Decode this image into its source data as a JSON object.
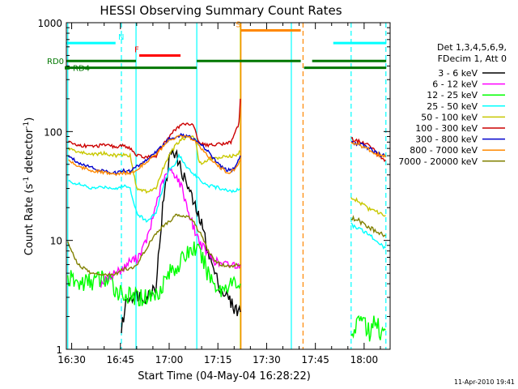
{
  "chart_data": {
    "type": "line",
    "title": "HESSI Observing Summary Count Rates",
    "xlabel": "Start Time (04-May-04 16:28:22)",
    "ylabel_main": "Count Rate (s",
    "ylabel_sup1": "-1",
    "ylabel_mid": " detector",
    "ylabel_sup2": "-1",
    "ylabel_end": ")",
    "footer": "11-Apr-2010 19:41",
    "yscale": "log",
    "xlim": [
      "16:28:22",
      "18:08:00"
    ],
    "ylim": [
      1,
      1000
    ],
    "x_ticks": [
      {
        "t": 990,
        "label": "16:30"
      },
      {
        "t": 1005,
        "label": "16:45"
      },
      {
        "t": 1020,
        "label": "17:00"
      },
      {
        "t": 1035,
        "label": "17:15"
      },
      {
        "t": 1050,
        "label": "17:30"
      },
      {
        "t": 1065,
        "label": "17:45"
      },
      {
        "t": 1080,
        "label": "18:00"
      }
    ],
    "y_ticks": [
      {
        "v": 1,
        "label": "1"
      },
      {
        "v": 10,
        "label": "10"
      },
      {
        "v": 100,
        "label": "100"
      },
      {
        "v": 1000,
        "label": "1000"
      }
    ],
    "legend_title": [
      "Det 1,3,4,5,6,9,",
      "FDecim 1, Att 0"
    ],
    "series": [
      {
        "name": "3 - 6 keV",
        "color": "#000000",
        "points": [
          [
            1004.0,
            null
          ],
          [
            1005.3,
            1.5
          ],
          [
            1007,
            3
          ],
          [
            1010,
            3.2
          ],
          [
            1013,
            3
          ],
          [
            1016,
            4
          ],
          [
            1018,
            20
          ],
          [
            1020,
            55
          ],
          [
            1021,
            70
          ],
          [
            1022,
            62
          ],
          [
            1024,
            42
          ],
          [
            1026,
            30
          ],
          [
            1028,
            20
          ],
          [
            1030,
            14
          ],
          [
            1032,
            8
          ],
          [
            1034,
            5
          ],
          [
            1036,
            3.5
          ],
          [
            1038,
            3
          ],
          [
            1040,
            2.4
          ],
          [
            1041.9,
            2.2
          ]
        ]
      },
      {
        "name": "6 - 12 keV",
        "color": "#ff00ff",
        "points": [
          [
            999,
            4
          ],
          [
            1003,
            5
          ],
          [
            1006,
            5.5
          ],
          [
            1008,
            6.5
          ],
          [
            1010,
            6.8
          ],
          [
            1012,
            8.5
          ],
          [
            1014,
            12
          ],
          [
            1016,
            22
          ],
          [
            1018,
            34
          ],
          [
            1020,
            44
          ],
          [
            1022,
            40
          ],
          [
            1024,
            30
          ],
          [
            1026,
            18
          ],
          [
            1028,
            12
          ],
          [
            1030,
            9
          ],
          [
            1032,
            7.5
          ],
          [
            1034,
            6.5
          ],
          [
            1036,
            6
          ],
          [
            1038,
            6
          ],
          [
            1041.9,
            6
          ]
        ]
      },
      {
        "name": "12 - 25 keV",
        "color": "#00ff00",
        "points": [
          [
            988.8,
            4.5
          ],
          [
            992,
            4
          ],
          [
            996,
            4.2
          ],
          [
            1000,
            4.5
          ],
          [
            1004,
            3.5
          ],
          [
            1008,
            3
          ],
          [
            1012,
            3
          ],
          [
            1016,
            3.2
          ],
          [
            1020,
            5
          ],
          [
            1024,
            6.5
          ],
          [
            1026,
            8
          ],
          [
            1028,
            8.5
          ],
          [
            1030,
            7
          ],
          [
            1032,
            5
          ],
          [
            1034,
            4
          ],
          [
            1036,
            3.5
          ],
          [
            1038,
            4
          ],
          [
            1041.9,
            4
          ]
        ]
      },
      {
        "name": "25 - 50 keV",
        "color": "#00ffff",
        "points": [
          [
            989,
            35
          ],
          [
            992,
            33
          ],
          [
            996,
            30
          ],
          [
            1000,
            31
          ],
          [
            1004,
            30
          ],
          [
            1006,
            32
          ],
          [
            1008,
            30
          ],
          [
            1010,
            18
          ],
          [
            1013,
            15
          ],
          [
            1016,
            18
          ],
          [
            1018,
            30
          ],
          [
            1020,
            45
          ],
          [
            1022,
            50
          ],
          [
            1023,
            60
          ],
          [
            1024,
            55
          ],
          [
            1026,
            45
          ],
          [
            1028,
            40
          ],
          [
            1030,
            35
          ],
          [
            1032,
            32
          ],
          [
            1034,
            31
          ],
          [
            1036,
            30
          ],
          [
            1040,
            28
          ],
          [
            1041.9,
            30
          ]
        ]
      },
      {
        "name": "50 - 100 keV",
        "color": "#c8c800",
        "points": [
          [
            989,
            70
          ],
          [
            992,
            65
          ],
          [
            996,
            62
          ],
          [
            1000,
            63
          ],
          [
            1004,
            60
          ],
          [
            1006,
            62
          ],
          [
            1008,
            60
          ],
          [
            1010,
            30
          ],
          [
            1013,
            28
          ],
          [
            1016,
            30
          ],
          [
            1018,
            45
          ],
          [
            1020,
            60
          ],
          [
            1022,
            75
          ],
          [
            1024,
            85
          ],
          [
            1026,
            90
          ],
          [
            1028,
            88
          ],
          [
            1029,
            55
          ],
          [
            1030,
            50
          ],
          [
            1032,
            55
          ],
          [
            1036,
            58
          ],
          [
            1040,
            60
          ],
          [
            1041.9,
            65
          ]
        ]
      },
      {
        "name": "100 - 300 keV",
        "color": "#cc0000",
        "points": [
          [
            989,
            80
          ],
          [
            992,
            75
          ],
          [
            996,
            73
          ],
          [
            1000,
            75
          ],
          [
            1004,
            72
          ],
          [
            1006,
            75
          ],
          [
            1008,
            70
          ],
          [
            1010,
            60
          ],
          [
            1013,
            58
          ],
          [
            1016,
            60
          ],
          [
            1018,
            75
          ],
          [
            1020,
            90
          ],
          [
            1022,
            105
          ],
          [
            1024,
            115
          ],
          [
            1026,
            120
          ],
          [
            1028,
            108
          ],
          [
            1029,
            80
          ],
          [
            1030,
            78
          ],
          [
            1032,
            75
          ],
          [
            1036,
            77
          ],
          [
            1039,
            80
          ],
          [
            1041.5,
            120
          ],
          [
            1041.9,
            200
          ]
        ]
      },
      {
        "name": "300 - 800 keV",
        "color": "#0000cc",
        "points": [
          [
            989,
            60
          ],
          [
            992,
            52
          ],
          [
            996,
            47
          ],
          [
            1000,
            43
          ],
          [
            1004,
            42
          ],
          [
            1006,
            44
          ],
          [
            1008,
            43
          ],
          [
            1010,
            48
          ],
          [
            1012,
            52
          ],
          [
            1014,
            58
          ],
          [
            1016,
            65
          ],
          [
            1018,
            75
          ],
          [
            1020,
            85
          ],
          [
            1022,
            90
          ],
          [
            1024,
            93
          ],
          [
            1026,
            90
          ],
          [
            1028,
            85
          ],
          [
            1030,
            75
          ],
          [
            1032,
            65
          ],
          [
            1034,
            55
          ],
          [
            1036,
            48
          ],
          [
            1038,
            44
          ],
          [
            1040,
            45
          ],
          [
            1041.9,
            60
          ]
        ]
      },
      {
        "name": "800 - 7000 keV",
        "color": "#ff8800",
        "points": [
          [
            989,
            55
          ],
          [
            992,
            48
          ],
          [
            996,
            44
          ],
          [
            1000,
            42
          ],
          [
            1004,
            40
          ],
          [
            1006,
            42
          ],
          [
            1008,
            41
          ],
          [
            1010,
            45
          ],
          [
            1012,
            50
          ],
          [
            1014,
            56
          ],
          [
            1016,
            62
          ],
          [
            1018,
            72
          ],
          [
            1020,
            82
          ],
          [
            1022,
            88
          ],
          [
            1024,
            90
          ],
          [
            1026,
            88
          ],
          [
            1028,
            82
          ],
          [
            1030,
            70
          ],
          [
            1032,
            60
          ],
          [
            1034,
            52
          ],
          [
            1036,
            46
          ],
          [
            1038,
            42
          ],
          [
            1040,
            44
          ],
          [
            1041.9,
            55
          ]
        ]
      },
      {
        "name": "7000 - 20000 keV",
        "color": "#808000",
        "points": [
          [
            988.8,
            9.5
          ],
          [
            990,
            8
          ],
          [
            992,
            6
          ],
          [
            996,
            5
          ],
          [
            1000,
            4.8
          ],
          [
            1004,
            5
          ],
          [
            1006,
            5.5
          ],
          [
            1008,
            5.5
          ],
          [
            1010,
            6
          ],
          [
            1012,
            7.5
          ],
          [
            1014,
            9.5
          ],
          [
            1016,
            11.5
          ],
          [
            1018,
            13.5
          ],
          [
            1020,
            15
          ],
          [
            1022,
            17
          ],
          [
            1024,
            17
          ],
          [
            1026,
            16.5
          ],
          [
            1028,
            14
          ],
          [
            1030,
            11
          ],
          [
            1032,
            8
          ],
          [
            1034,
            6.5
          ],
          [
            1036,
            6
          ],
          [
            1038,
            5.8
          ],
          [
            1041.9,
            6
          ]
        ]
      }
    ],
    "series_late": [
      {
        "color": "#cc0000",
        "points": [
          [
            1076,
            85
          ],
          [
            1078,
            82
          ],
          [
            1080,
            78
          ],
          [
            1082,
            72
          ],
          [
            1084,
            62
          ],
          [
            1086.6,
            55
          ]
        ]
      },
      {
        "color": "#0000cc",
        "points": [
          [
            1076,
            80
          ],
          [
            1078,
            78
          ],
          [
            1080,
            74
          ],
          [
            1082,
            68
          ],
          [
            1084,
            62
          ],
          [
            1086.6,
            60
          ]
        ]
      },
      {
        "color": "#ff8800",
        "points": [
          [
            1076,
            78
          ],
          [
            1078,
            76
          ],
          [
            1080,
            73
          ],
          [
            1082,
            67
          ],
          [
            1084,
            62
          ],
          [
            1086.6,
            58
          ]
        ]
      },
      {
        "color": "#c8c800",
        "points": [
          [
            1076,
            25
          ],
          [
            1078,
            23
          ],
          [
            1080,
            21
          ],
          [
            1082,
            19
          ],
          [
            1084,
            18
          ],
          [
            1086.6,
            17
          ]
        ]
      },
      {
        "color": "#808000",
        "points": [
          [
            1076,
            16
          ],
          [
            1078,
            15.5
          ],
          [
            1080,
            14
          ],
          [
            1082,
            13
          ],
          [
            1084,
            12
          ],
          [
            1086.6,
            11
          ]
        ]
      },
      {
        "color": "#00ffff",
        "points": [
          [
            1076,
            14
          ],
          [
            1078,
            13
          ],
          [
            1080,
            12
          ],
          [
            1082,
            11
          ],
          [
            1084,
            9.5
          ],
          [
            1086.6,
            8.5
          ]
        ]
      },
      {
        "color": "#00ff00",
        "points": [
          [
            1076,
            1.6
          ],
          [
            1078,
            1.5
          ],
          [
            1080,
            1.7
          ],
          [
            1082,
            1.5
          ],
          [
            1084,
            1.6
          ],
          [
            1086.6,
            1.5
          ]
        ]
      }
    ],
    "flags": [
      {
        "label": "",
        "color": "#00ffff",
        "level": 650,
        "segments": [
          [
            988.4,
            1003.5
          ],
          [
            1070.5,
            1086.8
          ]
        ]
      },
      {
        "label": "N",
        "color": "#00ffff",
        "label_at": 1004.3
      },
      {
        "label": "F",
        "color": "#ff0000",
        "level": 500,
        "segments": [
          [
            1010.8,
            1023.5
          ]
        ],
        "label_at": 1009.3
      },
      {
        "label": "S",
        "color": "#ff8800",
        "level": 850,
        "segments": [
          [
            1042,
            1060.5
          ]
        ],
        "label_at": 1040.5
      },
      {
        "label": "RD0",
        "color": "#007700",
        "level": 445,
        "segments": [
          [
            988.4,
            1009.8
          ],
          [
            1028.5,
            1060.5
          ],
          [
            1064,
            1086.8
          ]
        ]
      },
      {
        "label": "RD4",
        "color": "#007700",
        "level": 385,
        "segments": [
          [
            988.4,
            1021.5
          ],
          [
            1021.5,
            1028.5
          ],
          [
            1061.5,
            1086.8
          ]
        ]
      }
    ],
    "vlines": [
      {
        "t": 988.8,
        "color": "#00ffff",
        "style": "solid"
      },
      {
        "t": 1005.3,
        "color": "#00ffff",
        "style": "dashed"
      },
      {
        "t": 1009.8,
        "color": "#00ffff",
        "style": "solid"
      },
      {
        "t": 1028.5,
        "color": "#00ffff",
        "style": "solid"
      },
      {
        "t": 1041.9,
        "color": "#c8c800",
        "style": "solid"
      },
      {
        "t": 1042.1,
        "color": "#ff8800",
        "style": "solid"
      },
      {
        "t": 1057.6,
        "color": "#00ffff",
        "style": "solid"
      },
      {
        "t": 1061.2,
        "color": "#ff8800",
        "style": "dashed"
      },
      {
        "t": 1076.0,
        "color": "#00ffff",
        "style": "dashed"
      },
      {
        "t": 1086.7,
        "color": "#00ffff",
        "style": "dashed"
      }
    ]
  }
}
